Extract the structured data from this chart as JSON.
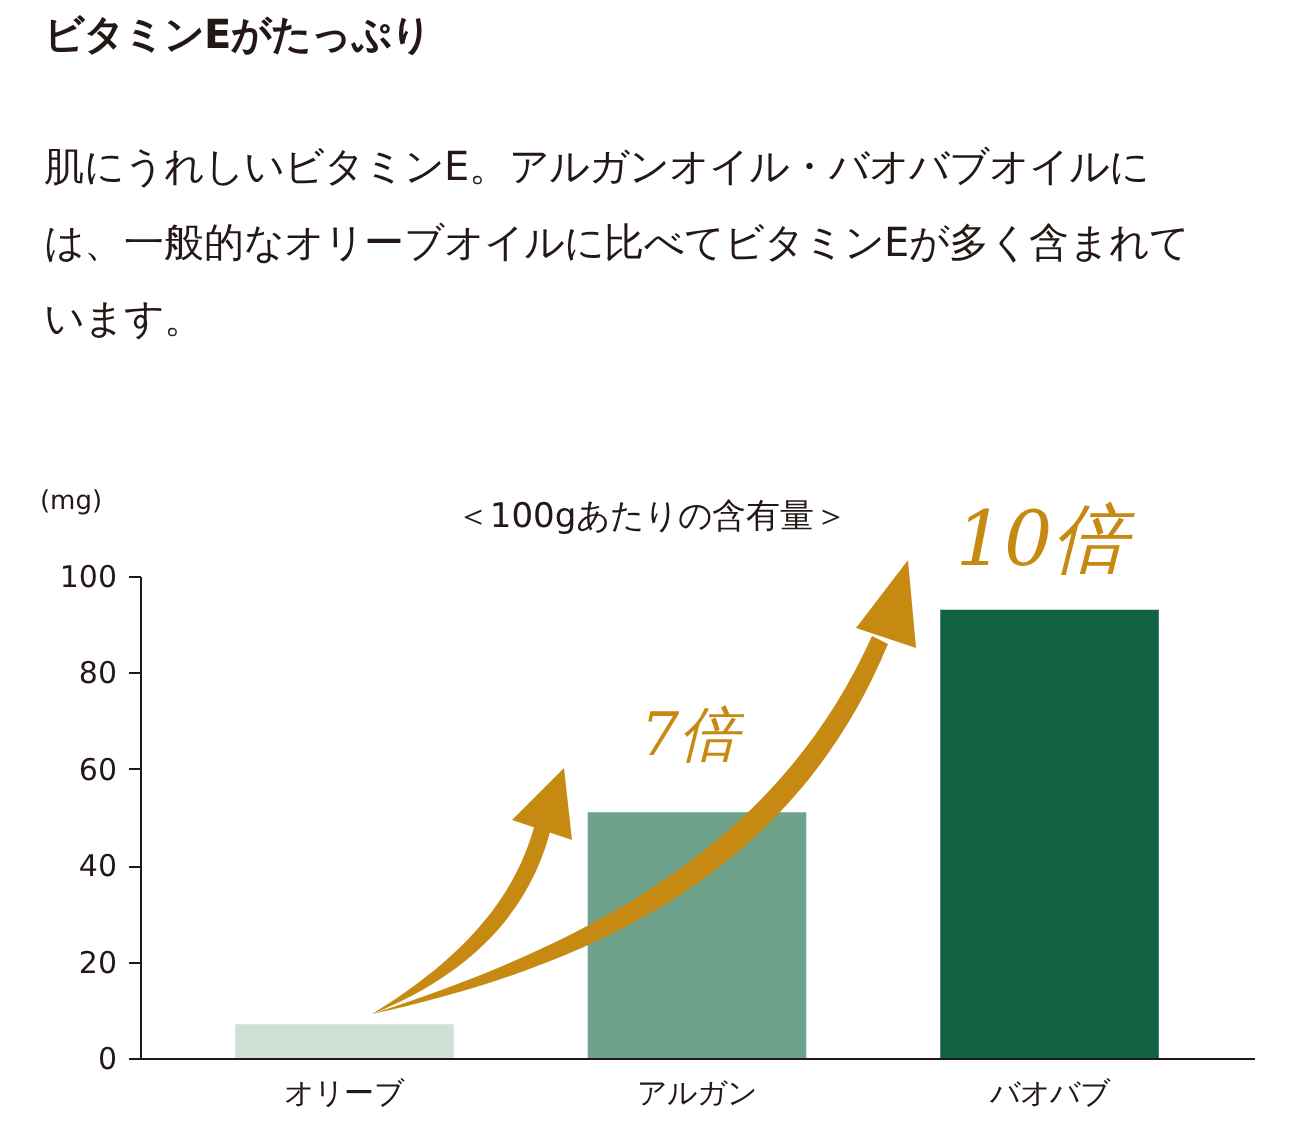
{
  "chart_data": {
    "type": "bar",
    "title": "ビタミンEがたっぷり",
    "subtitle": "肌にうれしいビタミンE。アルガンオイル・バオバブオイルには、一般的なオリーブオイルに比べてビタミンEが多く含まれています。",
    "ylabel": "(mg)",
    "categories": [
      "オリーブ",
      "アルガン",
      "バオバブ"
    ],
    "values": [
      7,
      51,
      93
    ],
    "colors": [
      "#cfe0d6",
      "#6fa28a",
      "#116341"
    ],
    "ylim": [
      0,
      100
    ],
    "yticks": [
      0,
      20,
      40,
      60,
      80,
      100
    ],
    "annotations": [
      "＜100gあたりの含有量＞",
      "7倍",
      "10倍"
    ]
  }
}
